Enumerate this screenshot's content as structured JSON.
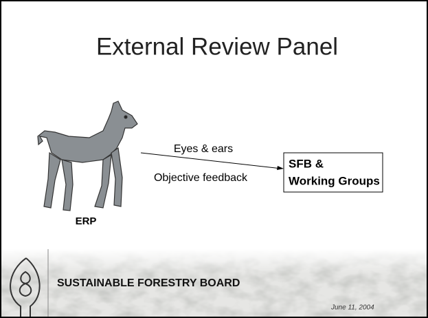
{
  "title": "External Review Panel",
  "diagram": {
    "source_label": "ERP",
    "arrow_labels": [
      "Eyes & ears",
      "Objective feedback"
    ],
    "target_lines": [
      "SFB &",
      "Working Groups"
    ]
  },
  "footer": {
    "organization": "SUSTAINABLE FORESTRY BOARD",
    "date": "June 11, 2004"
  }
}
